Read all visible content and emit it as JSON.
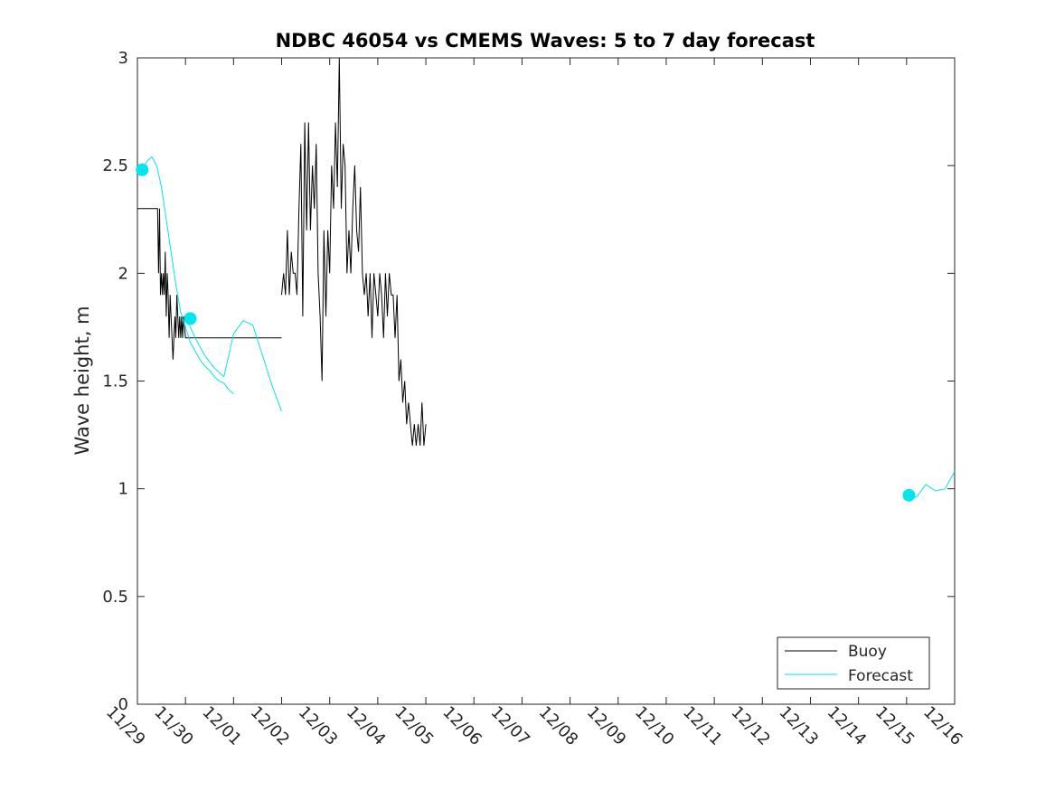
{
  "chart_data": {
    "type": "line",
    "title": "NDBC 46054 vs CMEMS Waves: 5 to 7 day forecast",
    "xlabel": "",
    "ylabel": "Wave height, m",
    "x_unit": "days since 11/29",
    "xlim": [
      0,
      17
    ],
    "ylim": [
      0,
      3
    ],
    "x_ticks": [
      {
        "value": 0,
        "label": "11/29"
      },
      {
        "value": 1,
        "label": "11/30"
      },
      {
        "value": 2,
        "label": "12/01"
      },
      {
        "value": 3,
        "label": "12/02"
      },
      {
        "value": 4,
        "label": "12/03"
      },
      {
        "value": 5,
        "label": "12/04"
      },
      {
        "value": 6,
        "label": "12/05"
      },
      {
        "value": 7,
        "label": "12/06"
      },
      {
        "value": 8,
        "label": "12/07"
      },
      {
        "value": 9,
        "label": "12/08"
      },
      {
        "value": 10,
        "label": "12/09"
      },
      {
        "value": 11,
        "label": "12/10"
      },
      {
        "value": 12,
        "label": "12/11"
      },
      {
        "value": 13,
        "label": "12/12"
      },
      {
        "value": 14,
        "label": "12/13"
      },
      {
        "value": 15,
        "label": "12/14"
      },
      {
        "value": 16,
        "label": "12/15"
      },
      {
        "value": 17,
        "label": "12/16"
      }
    ],
    "y_ticks": [
      {
        "value": 0,
        "label": "0"
      },
      {
        "value": 0.5,
        "label": "0.5"
      },
      {
        "value": 1,
        "label": "1"
      },
      {
        "value": 1.5,
        "label": "1.5"
      },
      {
        "value": 2,
        "label": "2"
      },
      {
        "value": 2.5,
        "label": "2.5"
      },
      {
        "value": 3,
        "label": "3"
      }
    ],
    "legend_position": "bottom-right",
    "series": [
      {
        "name": "Buoy",
        "color": "#000000",
        "segments": [
          {
            "x": [
              0,
              0.42,
              0.44,
              0.46,
              0.48,
              0.5,
              0.52,
              0.54,
              0.56,
              0.58,
              0.6,
              0.62,
              0.64,
              0.66,
              0.68,
              0.7,
              0.72,
              0.74,
              0.76,
              0.78,
              0.8,
              0.82,
              0.84,
              0.86,
              0.88,
              0.9,
              0.92,
              0.94,
              0.96,
              1.0,
              3.0
            ],
            "y": [
              2.3,
              2.3,
              2.0,
              2.3,
              1.9,
              2.0,
              1.9,
              2.0,
              1.9,
              2.1,
              1.8,
              2.0,
              1.9,
              1.7,
              1.9,
              1.8,
              1.7,
              1.6,
              1.7,
              1.8,
              1.7,
              1.9,
              1.8,
              1.7,
              1.8,
              1.7,
              1.8,
              1.7,
              1.8,
              1.7,
              1.7
            ]
          },
          {
            "x": [
              3.0,
              3.04,
              3.08,
              3.12,
              3.16,
              3.2,
              3.24,
              3.28,
              3.32,
              3.36,
              3.4,
              3.44,
              3.48,
              3.52,
              3.56,
              3.6,
              3.64,
              3.68,
              3.72,
              3.76,
              3.8,
              3.84,
              3.88,
              3.92,
              3.96,
              4.0,
              4.04,
              4.08,
              4.12,
              4.16,
              4.2,
              4.24,
              4.28,
              4.32,
              4.36,
              4.4,
              4.44,
              4.48,
              4.52,
              4.56,
              4.6,
              4.64,
              4.68,
              4.72,
              4.76,
              4.8,
              4.84,
              4.88,
              4.92,
              4.96,
              5.0,
              5.04,
              5.08,
              5.12,
              5.16,
              5.2,
              5.24,
              5.28,
              5.32,
              5.36,
              5.4,
              5.44,
              5.48,
              5.52,
              5.56,
              5.6,
              5.64,
              5.68,
              5.72,
              5.76,
              5.8,
              5.84,
              5.88,
              5.92,
              5.96,
              6.0
            ],
            "y": [
              1.9,
              2.0,
              1.9,
              2.2,
              1.9,
              2.1,
              2.0,
              2.0,
              1.9,
              2.3,
              2.6,
              1.8,
              2.7,
              2.2,
              2.7,
              2.2,
              2.5,
              2.3,
              2.6,
              2.0,
              1.8,
              1.5,
              2.2,
              1.8,
              2.2,
              2.0,
              2.5,
              2.3,
              2.7,
              2.4,
              3.0,
              2.3,
              2.6,
              2.5,
              2.0,
              2.2,
              2.0,
              2.3,
              2.5,
              2.2,
              2.1,
              2.4,
              2.0,
              1.9,
              2.0,
              1.8,
              2.0,
              1.7,
              2.0,
              1.9,
              1.8,
              2.0,
              1.9,
              1.7,
              2.0,
              1.8,
              2.0,
              1.9,
              1.9,
              1.7,
              1.9,
              1.5,
              1.6,
              1.4,
              1.5,
              1.3,
              1.4,
              1.3,
              1.2,
              1.3,
              1.2,
              1.3,
              1.2,
              1.4,
              1.2,
              1.3
            ]
          }
        ]
      },
      {
        "name": "Forecast",
        "color": "#00E5EE",
        "segments": [
          {
            "x": [
              0.1,
              0.2,
              0.3,
              0.4,
              0.5,
              0.6,
              0.7,
              0.8,
              0.9,
              1.0,
              1.1,
              1.2,
              1.3,
              1.4,
              1.5,
              1.6,
              1.7,
              1.8,
              1.9,
              2.0
            ],
            "y": [
              2.48,
              2.52,
              2.54,
              2.5,
              2.4,
              2.25,
              2.1,
              1.95,
              1.82,
              1.75,
              1.68,
              1.64,
              1.6,
              1.57,
              1.55,
              1.52,
              1.5,
              1.49,
              1.46,
              1.44
            ]
          },
          {
            "x": [
              1.0,
              1.2,
              1.4,
              1.6,
              1.8,
              2.0,
              2.2,
              2.4,
              2.6,
              2.8,
              3.0
            ],
            "y": [
              1.8,
              1.7,
              1.62,
              1.56,
              1.52,
              1.72,
              1.78,
              1.76,
              1.62,
              1.48,
              1.36
            ]
          },
          {
            "x": [
              16.0,
              16.2,
              16.4,
              16.6,
              16.8,
              17.0
            ],
            "y": [
              0.97,
              0.96,
              1.02,
              0.99,
              1.0,
              1.08
            ]
          }
        ],
        "markers": [
          {
            "x": 0.1,
            "y": 2.48
          },
          {
            "x": 1.1,
            "y": 1.79
          },
          {
            "x": 16.05,
            "y": 0.97
          }
        ]
      }
    ]
  }
}
